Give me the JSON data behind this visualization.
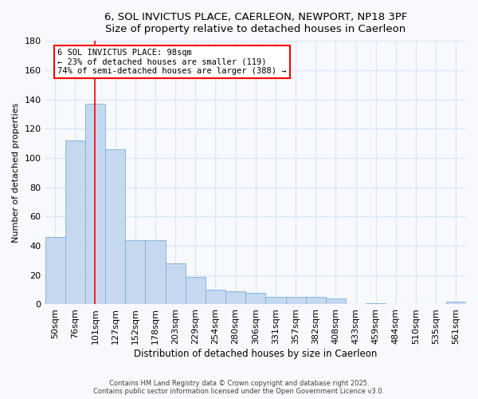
{
  "title1": "6, SOL INVICTUS PLACE, CAERLEON, NEWPORT, NP18 3PF",
  "title2": "Size of property relative to detached houses in Caerleon",
  "xlabel": "Distribution of detached houses by size in Caerleon",
  "ylabel": "Number of detached properties",
  "categories": [
    "50sqm",
    "76sqm",
    "101sqm",
    "127sqm",
    "152sqm",
    "178sqm",
    "203sqm",
    "229sqm",
    "254sqm",
    "280sqm",
    "306sqm",
    "331sqm",
    "357sqm",
    "382sqm",
    "408sqm",
    "433sqm",
    "459sqm",
    "484sqm",
    "510sqm",
    "535sqm",
    "561sqm"
  ],
  "values": [
    46,
    112,
    137,
    106,
    44,
    44,
    28,
    19,
    10,
    9,
    8,
    5,
    5,
    5,
    4,
    0,
    1,
    0,
    0,
    0,
    2
  ],
  "bar_color": "#c5d8f0",
  "bar_edge_color": "#7aafd4",
  "annotation_text": "6 SOL INVICTUS PLACE: 98sqm\n← 23% of detached houses are smaller (119)\n74% of semi-detached houses are larger (388) →",
  "redline_x": 2.0,
  "ylim": [
    0,
    180
  ],
  "yticks": [
    0,
    20,
    40,
    60,
    80,
    100,
    120,
    140,
    160,
    180
  ],
  "footer1": "Contains HM Land Registry data © Crown copyright and database right 2025.",
  "footer2": "Contains public sector information licensed under the Open Government Licence v3.0.",
  "fig_facecolor": "#f7f9fc",
  "ax_facecolor": "#f7f9fc",
  "grid_color": "#dde8f4"
}
